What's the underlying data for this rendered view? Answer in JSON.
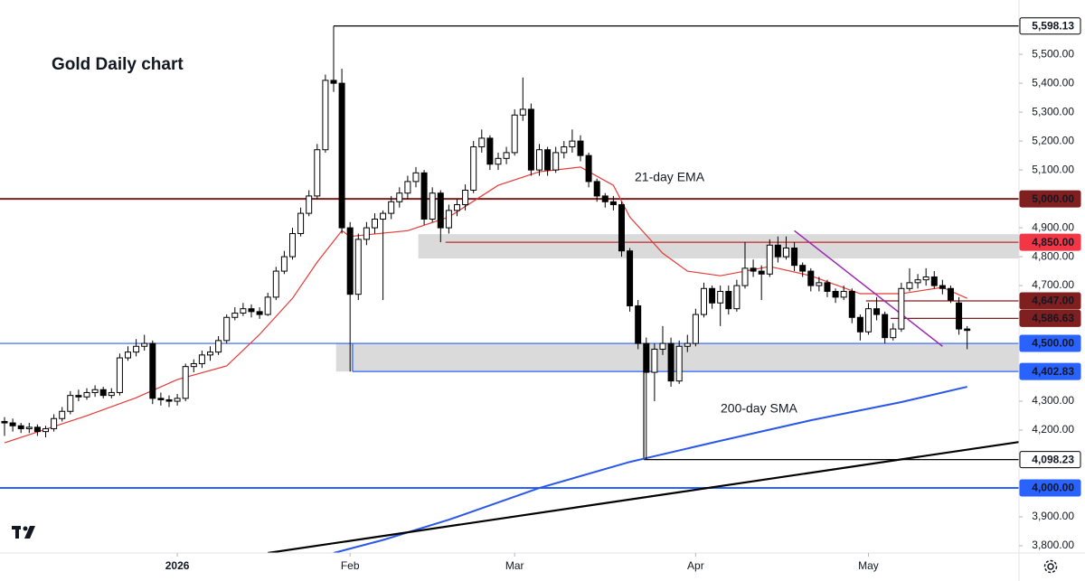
{
  "chart_data": {
    "type": "candlestick",
    "title": "Gold Daily chart",
    "xlim": [
      -0.55,
      123.3
    ],
    "ylim": [
      3775,
      5688
    ],
    "xticks": [
      {
        "value": 21,
        "label": "2026"
      },
      {
        "value": 42,
        "label": "Feb"
      },
      {
        "value": 62,
        "label": "Mar"
      },
      {
        "value": 84,
        "label": "Apr"
      },
      {
        "value": 105,
        "label": "May"
      }
    ],
    "yticks": [
      {
        "value": 5500,
        "label": "5,500.00"
      },
      {
        "value": 5400,
        "label": "5,400.00"
      },
      {
        "value": 5300,
        "label": "5,300.00"
      },
      {
        "value": 5200,
        "label": "5,200.00"
      },
      {
        "value": 5100,
        "label": "5,100.00"
      },
      {
        "value": 4900,
        "label": "4,900.00"
      },
      {
        "value": 4800,
        "label": "4,800.00"
      },
      {
        "value": 4700,
        "label": "4,700.00"
      },
      {
        "value": 4300,
        "label": "4,300.00"
      },
      {
        "value": 4200,
        "label": "4,200.00"
      },
      {
        "value": 3900,
        "label": "3,900.00"
      },
      {
        "value": 3800,
        "label": "3,800.00"
      }
    ],
    "up_color": "#ffffff",
    "down_color": "#000000",
    "ohlc": [
      [
        4230,
        4245,
        4180,
        4225
      ],
      [
        4225,
        4240,
        4195,
        4215
      ],
      [
        4215,
        4225,
        4190,
        4205
      ],
      [
        4205,
        4225,
        4190,
        4210
      ],
      [
        4210,
        4220,
        4180,
        4195
      ],
      [
        4195,
        4215,
        4175,
        4205
      ],
      [
        4205,
        4255,
        4195,
        4240
      ],
      [
        4240,
        4280,
        4230,
        4265
      ],
      [
        4265,
        4335,
        4255,
        4320
      ],
      [
        4320,
        4340,
        4300,
        4315
      ],
      [
        4315,
        4345,
        4305,
        4330
      ],
      [
        4330,
        4355,
        4315,
        4340
      ],
      [
        4340,
        4350,
        4310,
        4320
      ],
      [
        4320,
        4345,
        4310,
        4330
      ],
      [
        4330,
        4465,
        4320,
        4450
      ],
      [
        4450,
        4490,
        4440,
        4470
      ],
      [
        4470,
        4515,
        4455,
        4490
      ],
      [
        4490,
        4530,
        4475,
        4500
      ],
      [
        4500,
        4510,
        4290,
        4310
      ],
      [
        4310,
        4330,
        4285,
        4305
      ],
      [
        4305,
        4320,
        4280,
        4300
      ],
      [
        4300,
        4325,
        4285,
        4310
      ],
      [
        4310,
        4430,
        4300,
        4420
      ],
      [
        4420,
        4445,
        4400,
        4430
      ],
      [
        4430,
        4475,
        4415,
        4460
      ],
      [
        4460,
        4490,
        4440,
        4470
      ],
      [
        4470,
        4525,
        4460,
        4510
      ],
      [
        4510,
        4600,
        4500,
        4590
      ],
      [
        4590,
        4625,
        4580,
        4605
      ],
      [
        4605,
        4640,
        4595,
        4620
      ],
      [
        4620,
        4635,
        4590,
        4610
      ],
      [
        4610,
        4625,
        4585,
        4600
      ],
      [
        4600,
        4675,
        4595,
        4660
      ],
      [
        4660,
        4765,
        4650,
        4750
      ],
      [
        4750,
        4820,
        4740,
        4800
      ],
      [
        4800,
        4900,
        4790,
        4880
      ],
      [
        4880,
        4970,
        4870,
        4950
      ],
      [
        4950,
        5030,
        4940,
        5010
      ],
      [
        5010,
        5190,
        5000,
        5170
      ],
      [
        5170,
        5430,
        5160,
        5410
      ],
      [
        5410,
        5598.13,
        5370,
        5400
      ],
      [
        5400,
        5450,
        4880,
        4900
      ],
      [
        4900,
        4920,
        4402.83,
        4670
      ],
      [
        4670,
        4880,
        4650,
        4860
      ],
      [
        4860,
        4920,
        4840,
        4900
      ],
      [
        4900,
        4950,
        4880,
        4930
      ],
      [
        4930,
        4960,
        4650,
        4950
      ],
      [
        4950,
        5010,
        4930,
        4990
      ],
      [
        4990,
        5040,
        4970,
        5020
      ],
      [
        5020,
        5080,
        5000,
        5060
      ],
      [
        5060,
        5110,
        5040,
        5090
      ],
      [
        5090,
        5100,
        4910,
        4930
      ],
      [
        4930,
        5040,
        4920,
        5020
      ],
      [
        5020,
        5030,
        4850,
        4900
      ],
      [
        4900,
        4980,
        4880,
        4960
      ],
      [
        4960,
        5000,
        4940,
        4980
      ],
      [
        4980,
        5050,
        4960,
        5030
      ],
      [
        5030,
        5200,
        5020,
        5180
      ],
      [
        5180,
        5240,
        5160,
        5210
      ],
      [
        5210,
        5220,
        5100,
        5120
      ],
      [
        5120,
        5160,
        5100,
        5140
      ],
      [
        5140,
        5180,
        5120,
        5160
      ],
      [
        5160,
        5310,
        5150,
        5290
      ],
      [
        5290,
        5420,
        5270,
        5310
      ],
      [
        5310,
        5330,
        5080,
        5100
      ],
      [
        5100,
        5190,
        5080,
        5170
      ],
      [
        5170,
        5180,
        5080,
        5100
      ],
      [
        5100,
        5180,
        5090,
        5160
      ],
      [
        5160,
        5200,
        5140,
        5180
      ],
      [
        5180,
        5240,
        5160,
        5200
      ],
      [
        5200,
        5220,
        5130,
        5150
      ],
      [
        5150,
        5160,
        5040,
        5060
      ],
      [
        5060,
        5070,
        4990,
        5010
      ],
      [
        5010,
        5020,
        4970,
        4990
      ],
      [
        4990,
        5010,
        4960,
        4980
      ],
      [
        4980,
        4990,
        4800,
        4820
      ],
      [
        4820,
        4830,
        4610,
        4630
      ],
      [
        4630,
        4650,
        4480,
        4500
      ],
      [
        4500,
        4520,
        4098.23,
        4400
      ],
      [
        4400,
        4500,
        4300,
        4480
      ],
      [
        4480,
        4560,
        4460,
        4500
      ],
      [
        4500,
        4520,
        4350,
        4370
      ],
      [
        4370,
        4510,
        4360,
        4490
      ],
      [
        4490,
        4530,
        4470,
        4500
      ],
      [
        4500,
        4620,
        4490,
        4600
      ],
      [
        4600,
        4710,
        4590,
        4690
      ],
      [
        4690,
        4700,
        4620,
        4640
      ],
      [
        4640,
        4700,
        4560,
        4680
      ],
      [
        4680,
        4700,
        4600,
        4620
      ],
      [
        4620,
        4720,
        4610,
        4700
      ],
      [
        4700,
        4850,
        4690,
        4760
      ],
      [
        4760,
        4790,
        4730,
        4750
      ],
      [
        4750,
        4770,
        4650,
        4740
      ],
      [
        4740,
        4860,
        4730,
        4840
      ],
      [
        4840,
        4870,
        4780,
        4800
      ],
      [
        4800,
        4870,
        4790,
        4830
      ],
      [
        4830,
        4850,
        4750,
        4770
      ],
      [
        4770,
        4780,
        4730,
        4750
      ],
      [
        4750,
        4760,
        4680,
        4700
      ],
      [
        4700,
        4730,
        4680,
        4710
      ],
      [
        4710,
        4720,
        4660,
        4680
      ],
      [
        4680,
        4690,
        4640,
        4660
      ],
      [
        4660,
        4700,
        4650,
        4680
      ],
      [
        4680,
        4690,
        4570,
        4590
      ],
      [
        4590,
        4600,
        4510,
        4540
      ],
      [
        4540,
        4640,
        4530,
        4620
      ],
      [
        4620,
        4660,
        4580,
        4600
      ],
      [
        4600,
        4610,
        4500,
        4520
      ],
      [
        4520,
        4570,
        4510,
        4550
      ],
      [
        4550,
        4710,
        4540,
        4690
      ],
      [
        4690,
        4760,
        4680,
        4710
      ],
      [
        4710,
        4740,
        4690,
        4720
      ],
      [
        4720,
        4760,
        4700,
        4730
      ],
      [
        4730,
        4750,
        4690,
        4700
      ],
      [
        4700,
        4720,
        4670,
        4690
      ],
      [
        4690,
        4700,
        4640,
        4650
      ],
      [
        4640,
        4660,
        4530,
        4550
      ],
      [
        4550,
        4560,
        4480,
        4545
      ]
    ],
    "series": [
      {
        "name": "21-day EMA",
        "color": "#e53935",
        "x": [
          0,
          10,
          16,
          21,
          27,
          31,
          35,
          38,
          41,
          42,
          49,
          54,
          60,
          65,
          70,
          74,
          76,
          80,
          83,
          87,
          93,
          98,
          104,
          109,
          114,
          117
        ],
        "values": [
          4156,
          4250,
          4312,
          4375,
          4422,
          4531,
          4656,
          4781,
          4890,
          4870,
          4890,
          4937,
          5047,
          5094,
          5110,
          5047,
          4937,
          4812,
          4750,
          4734,
          4766,
          4734,
          4672,
          4672,
          4694,
          4656
        ]
      },
      {
        "name": "200-day SMA",
        "color": "#2957e8",
        "x": [
          40,
          46,
          54,
          65,
          76,
          87,
          98,
          109,
          117
        ],
        "values": [
          3775,
          3820,
          3890,
          4000,
          4090,
          4163,
          4234,
          4297,
          4350
        ]
      }
    ],
    "trendlines": [
      {
        "color": "#000000",
        "x": [
          32,
          123.3
        ],
        "values": [
          3775,
          4159
        ]
      },
      {
        "color": "#9c27b0",
        "x": [
          96,
          114
        ],
        "values": [
          4890,
          4490
        ]
      }
    ],
    "zones": [
      {
        "from": 50.3,
        "lo": 4794,
        "hi": 4878
      },
      {
        "from": 40.3,
        "lo": 4402.83,
        "hi": 4500
      }
    ],
    "levels": [
      {
        "value": 5598.13,
        "label": "5,598.13",
        "from": 40,
        "color": "#000000",
        "badge": "#ffffff",
        "text_color": "#000000"
      },
      {
        "value": 5000,
        "label": "5,000.00",
        "from": -0.55,
        "color": "#801f1f",
        "badge": "#801f1f",
        "text_color": "#ffffff"
      },
      {
        "value": 4850,
        "label": "4,850.00",
        "from": 53.6,
        "color": "#c62828",
        "badge": "#f23645",
        "text_color": "#ffffff"
      },
      {
        "value": 4647,
        "label": "4,647.00",
        "from": 104.7,
        "color": "#801f1f",
        "badge": "#801f1f",
        "text_color": "#ffffff"
      },
      {
        "value": 4586.63,
        "label": "4,586.63",
        "from": 107.7,
        "color": "#801f1f",
        "badge": "#801f1f",
        "text_color": "#ffffff"
      },
      {
        "value": 4500,
        "label": "4,500.00",
        "from": -0.55,
        "color": "#2962ff",
        "badge": "#2962ff",
        "text_color": "#ffffff"
      },
      {
        "value": 4402.83,
        "label": "4,402.83",
        "from": 42.3,
        "color": "#2962ff",
        "badge": "#2962ff",
        "text_color": "#ffffff"
      },
      {
        "value": 4098.23,
        "label": "4,098.23",
        "from": 77.7,
        "color": "#000000",
        "badge": "#ffffff",
        "text_color": "#000000"
      },
      {
        "value": 4000,
        "label": "4,000.00",
        "from": -0.55,
        "color": "#2962ff",
        "badge": "#2962ff",
        "text_color": "#ffffff"
      }
    ]
  }
}
